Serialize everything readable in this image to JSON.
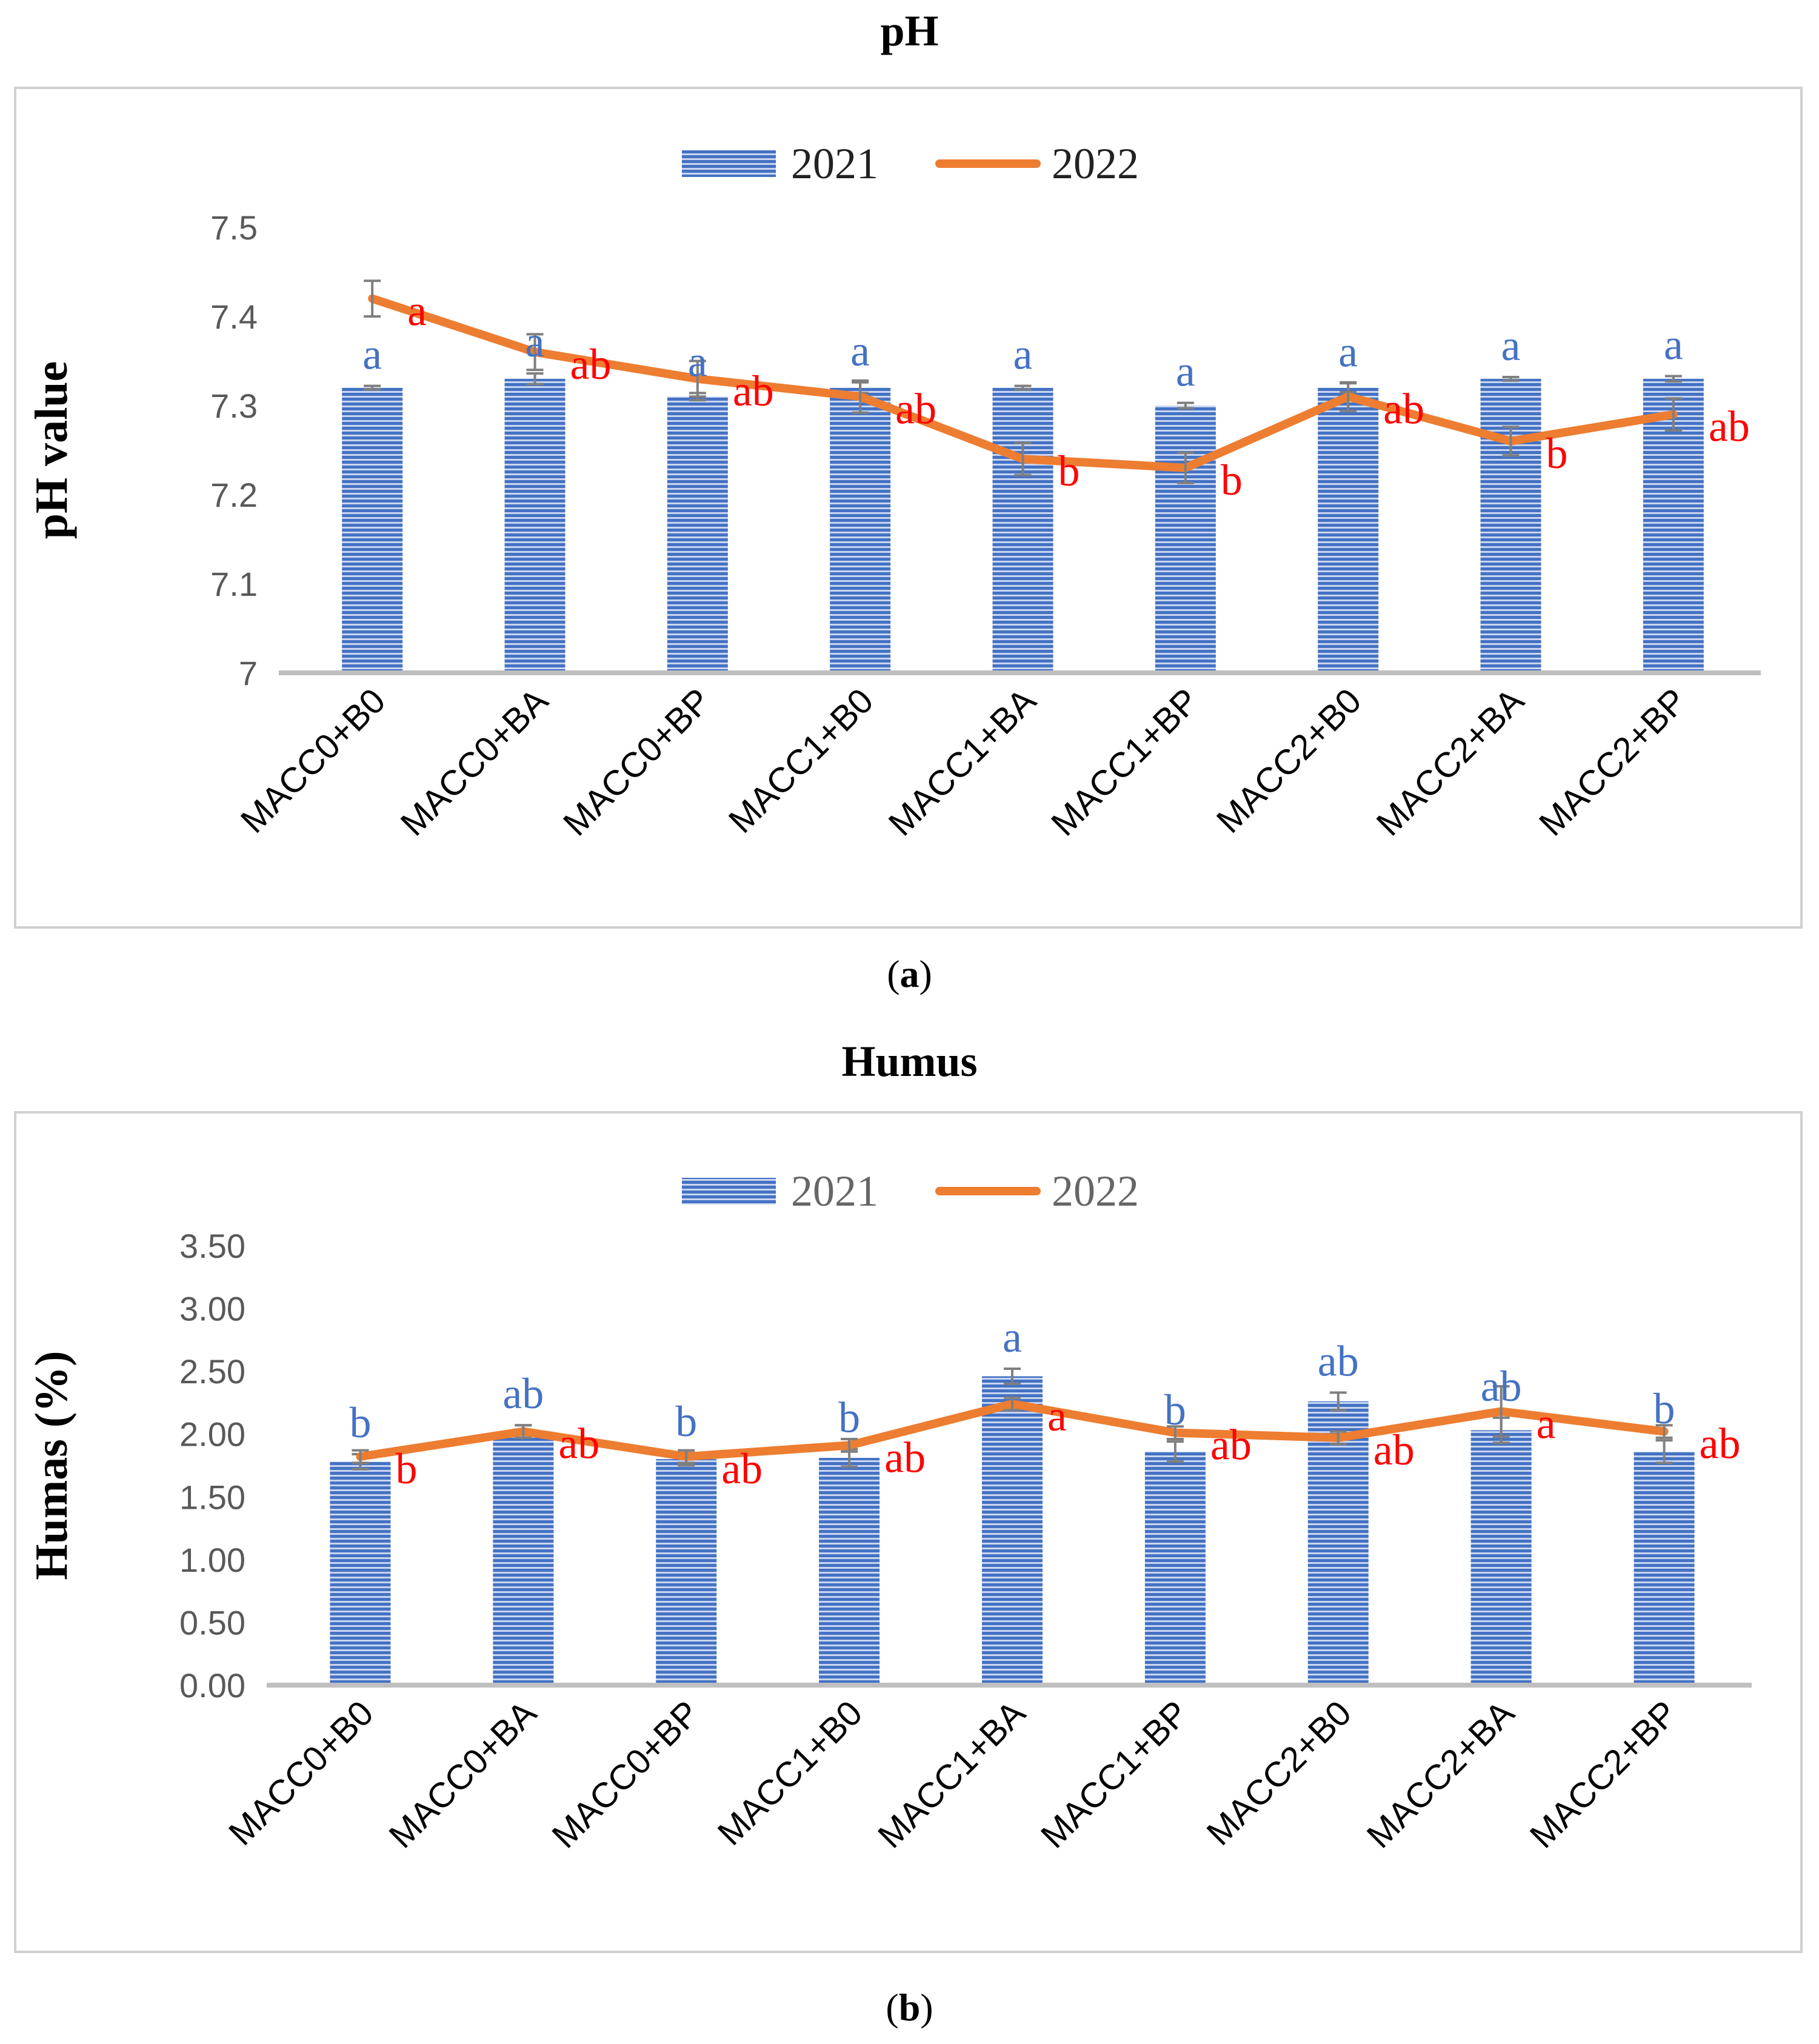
{
  "chart_data": [
    {
      "type": "bar",
      "title": "pH",
      "caption_label": "a",
      "ylabel": "pH value",
      "ylim": [
        7.0,
        7.5
      ],
      "yticks": [
        "7",
        "7.1",
        "7.2",
        "7.3",
        "7.4",
        "7.5"
      ],
      "categories": [
        "MACC0+B0",
        "MACC0+BA",
        "MACC0+BP",
        "MACC1+B0",
        "MACC1+BA",
        "MACC1+BP",
        "MACC2+B0",
        "MACC2+BA",
        "MACC2+BP"
      ],
      "series": [
        {
          "name": "2021",
          "type": "bar",
          "values": [
            7.32,
            7.33,
            7.31,
            7.32,
            7.32,
            7.3,
            7.32,
            7.33,
            7.33
          ],
          "errors": [
            0.002,
            0.006,
            0.004,
            0.006,
            0.002,
            0.003,
            0.005,
            0.002,
            0.003
          ],
          "letters": [
            "a",
            "a",
            "a",
            "a",
            "a",
            "a",
            "a",
            "a",
            "a"
          ],
          "color": "#4472C4"
        },
        {
          "name": "2022",
          "type": "line",
          "values": [
            7.42,
            7.36,
            7.33,
            7.31,
            7.24,
            7.23,
            7.31,
            7.26,
            7.29
          ],
          "errors": [
            0.02,
            0.02,
            0.02,
            0.018,
            0.018,
            0.017,
            0.016,
            0.016,
            0.018
          ],
          "letters": [
            "a",
            "ab",
            "ab",
            "ab",
            "b",
            "b",
            "ab",
            "b",
            "ab"
          ],
          "color": "#ED7D31"
        }
      ],
      "legend_position": "top",
      "grid": false
    },
    {
      "type": "bar",
      "title": "Humus",
      "caption_label": "b",
      "ylabel": "Humas (%)",
      "ylim": [
        0.0,
        3.5
      ],
      "yticks": [
        "0.00",
        "0.50",
        "1.00",
        "1.50",
        "2.00",
        "2.50",
        "3.00",
        "3.50"
      ],
      "categories": [
        "MACC0+B0",
        "MACC0+BA",
        "MACC0+BP",
        "MACC1+B0",
        "MACC1+BA",
        "MACC1+BP",
        "MACC2+B0",
        "MACC2+BA",
        "MACC2+BP"
      ],
      "series": [
        {
          "name": "2021",
          "type": "bar",
          "values": [
            1.78,
            2.02,
            1.8,
            1.81,
            2.46,
            1.86,
            2.26,
            2.03,
            1.86
          ],
          "errors": [
            0.06,
            0.05,
            0.05,
            0.07,
            0.06,
            0.08,
            0.07,
            0.1,
            0.09
          ],
          "letters": [
            "b",
            "ab",
            "b",
            "b",
            "a",
            "b",
            "ab",
            "ab",
            "b"
          ],
          "color": "#4472C4"
        },
        {
          "name": "2022",
          "type": "line",
          "values": [
            1.82,
            2.02,
            1.82,
            1.91,
            2.24,
            2.01,
            1.97,
            2.18,
            2.02
          ],
          "errors": [
            0.05,
            0.05,
            0.05,
            0.05,
            0.05,
            0.05,
            0.05,
            0.2,
            0.05
          ],
          "letters": [
            "b",
            "ab",
            "ab",
            "ab",
            "a",
            "ab",
            "ab",
            "a",
            "ab"
          ],
          "color": "#ED7D31"
        }
      ],
      "legend_position": "top",
      "grid": false
    }
  ]
}
